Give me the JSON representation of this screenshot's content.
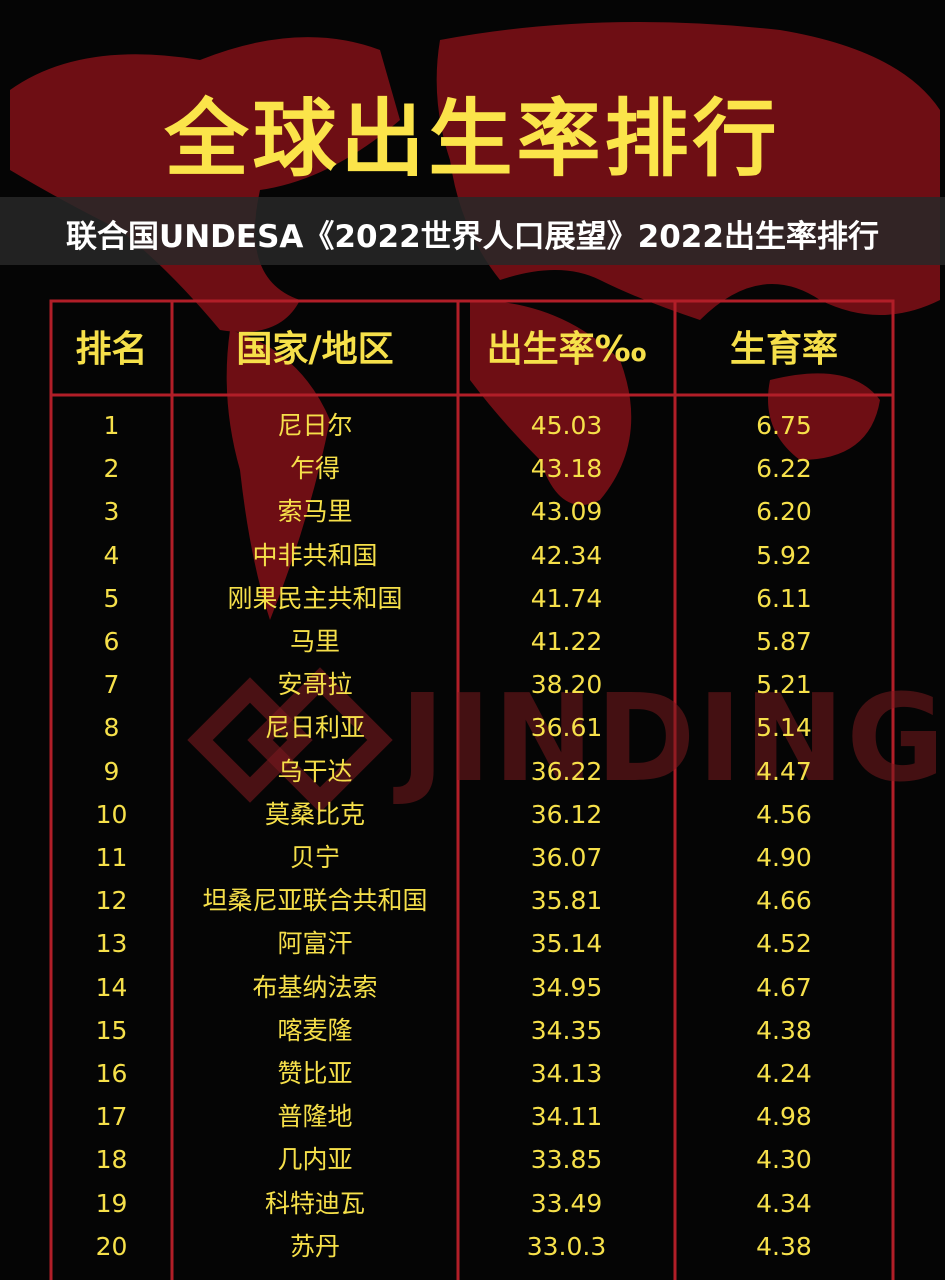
{
  "header": {
    "title": "全球出生率排行",
    "subtitle": "联合国UNDESA《2022世界人口展望》2022出生率排行"
  },
  "watermark": "JINDING",
  "table": {
    "columns": [
      "排名",
      "国家/地区",
      "出生率‰",
      "生育率"
    ],
    "rows": [
      [
        "1",
        "尼日尔",
        "45.03",
        "6.75"
      ],
      [
        "2",
        "乍得",
        "43.18",
        "6.22"
      ],
      [
        "3",
        "索马里",
        "43.09",
        "6.20"
      ],
      [
        "4",
        "中非共和国",
        "42.34",
        "5.92"
      ],
      [
        "5",
        "刚果民主共和国",
        "41.74",
        "6.11"
      ],
      [
        "6",
        "马里",
        "41.22",
        "5.87"
      ],
      [
        "7",
        "安哥拉",
        "38.20",
        "5.21"
      ],
      [
        "8",
        "尼日利亚",
        "36.61",
        "5.14"
      ],
      [
        "9",
        "乌干达",
        "36.22",
        "4.47"
      ],
      [
        "10",
        "莫桑比克",
        "36.12",
        "4.56"
      ],
      [
        "11",
        "贝宁",
        "36.07",
        "4.90"
      ],
      [
        "12",
        "坦桑尼亚联合共和国",
        "35.81",
        "4.66"
      ],
      [
        "13",
        "阿富汗",
        "35.14",
        "4.52"
      ],
      [
        "14",
        "布基纳法索",
        "34.95",
        "4.67"
      ],
      [
        "15",
        "喀麦隆",
        "34.35",
        "4.38"
      ],
      [
        "16",
        "赞比亚",
        "34.13",
        "4.24"
      ],
      [
        "17",
        "普隆地",
        "34.11",
        "4.98"
      ],
      [
        "18",
        "几内亚",
        "33.85",
        "4.30"
      ],
      [
        "19",
        "科特迪瓦",
        "33.49",
        "4.34"
      ],
      [
        "20",
        "苏丹",
        "33.0.3",
        "4.38"
      ]
    ]
  }
}
